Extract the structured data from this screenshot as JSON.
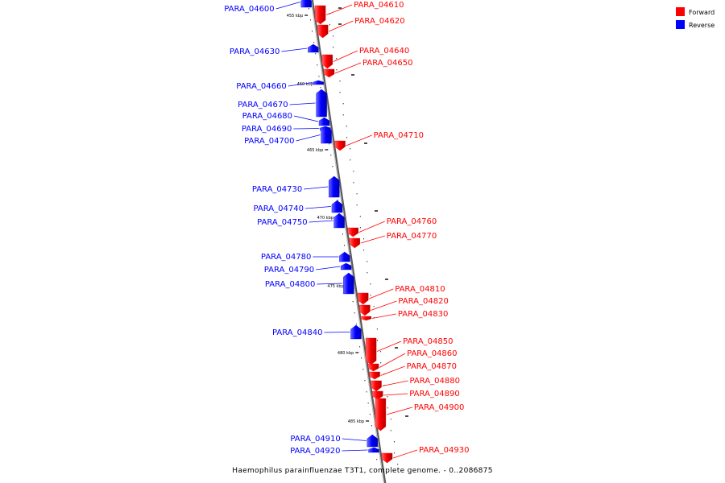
{
  "legend": {
    "items": [
      {
        "label": "Forward",
        "color": "#ff0000"
      },
      {
        "label": "Reverse",
        "color": "#0000ff"
      }
    ]
  },
  "caption": "Haemophilus parainfluenzae T3T1, complete genome. - 0..2086875",
  "colors": {
    "forward": "#ff0000",
    "reverse": "#0000ff",
    "backbone": "#808080"
  },
  "scale_ticks": [
    "455 kbp",
    "460 kbp",
    "465 kbp",
    "470 kbp",
    "475 kbp",
    "480 kbp",
    "485 kbp"
  ],
  "genes": [
    {
      "name": "PARA_04600",
      "strand": "reverse"
    },
    {
      "name": "PARA_04610",
      "strand": "forward"
    },
    {
      "name": "PARA_04620",
      "strand": "forward"
    },
    {
      "name": "PARA_04630",
      "strand": "reverse"
    },
    {
      "name": "PARA_04640",
      "strand": "forward"
    },
    {
      "name": "PARA_04650",
      "strand": "forward"
    },
    {
      "name": "PARA_04660",
      "strand": "reverse"
    },
    {
      "name": "PARA_04670",
      "strand": "reverse"
    },
    {
      "name": "PARA_04680",
      "strand": "reverse"
    },
    {
      "name": "PARA_04690",
      "strand": "reverse"
    },
    {
      "name": "PARA_04700",
      "strand": "reverse"
    },
    {
      "name": "PARA_04710",
      "strand": "forward"
    },
    {
      "name": "PARA_04730",
      "strand": "reverse"
    },
    {
      "name": "PARA_04740",
      "strand": "reverse"
    },
    {
      "name": "PARA_04750",
      "strand": "reverse"
    },
    {
      "name": "PARA_04760",
      "strand": "forward"
    },
    {
      "name": "PARA_04770",
      "strand": "forward"
    },
    {
      "name": "PARA_04780",
      "strand": "reverse"
    },
    {
      "name": "PARA_04790",
      "strand": "reverse"
    },
    {
      "name": "PARA_04800",
      "strand": "reverse"
    },
    {
      "name": "PARA_04810",
      "strand": "forward"
    },
    {
      "name": "PARA_04820",
      "strand": "forward"
    },
    {
      "name": "PARA_04830",
      "strand": "forward"
    },
    {
      "name": "PARA_04840",
      "strand": "reverse"
    },
    {
      "name": "PARA_04850",
      "strand": "forward"
    },
    {
      "name": "PARA_04860",
      "strand": "forward"
    },
    {
      "name": "PARA_04870",
      "strand": "forward"
    },
    {
      "name": "PARA_04880",
      "strand": "forward"
    },
    {
      "name": "PARA_04890",
      "strand": "forward"
    },
    {
      "name": "PARA_04900",
      "strand": "forward"
    },
    {
      "name": "PARA_04910",
      "strand": "reverse"
    },
    {
      "name": "PARA_04920",
      "strand": "reverse"
    },
    {
      "name": "PARA_04930",
      "strand": "forward"
    }
  ]
}
